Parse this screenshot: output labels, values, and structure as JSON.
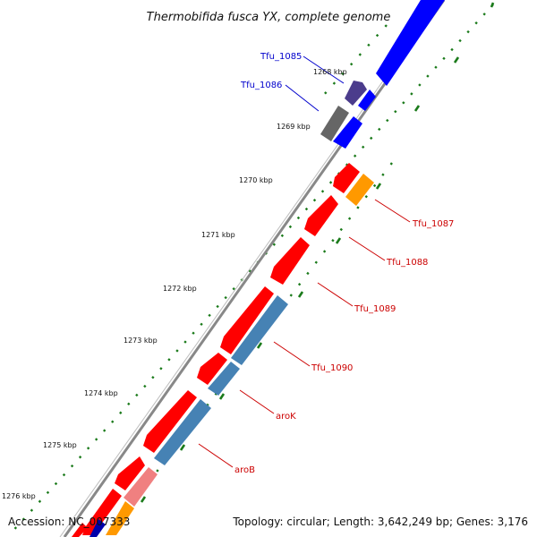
{
  "title": "Thermobifida fusca YX, complete genome",
  "accession": "Accession: NC_007333",
  "summary": "Topology: circular; Length: 3,642,249 bp; Genes: 3,176",
  "ticks": [
    "1268 kbp",
    "1269 kbp",
    "1270 kbp",
    "1271 kbp",
    "1272 kbp",
    "1273 kbp",
    "1274 kbp",
    "1275 kbp",
    "1276 kbp"
  ],
  "genes": [
    {
      "label": "Tfu_1085",
      "color": "#0000cc"
    },
    {
      "label": "Tfu_1086",
      "color": "#0000cc"
    },
    {
      "label": "Tfu_1087",
      "color": "#cc0000"
    },
    {
      "label": "Tfu_1088",
      "color": "#cc0000"
    },
    {
      "label": "Tfu_1089",
      "color": "#cc0000"
    },
    {
      "label": "Tfu_1090",
      "color": "#cc0000"
    },
    {
      "label": "aroK",
      "color": "#cc0000"
    },
    {
      "label": "aroB",
      "color": "#cc0000"
    }
  ],
  "colors": {
    "cds_red": "#ff0000",
    "cds_blue": "#0000ff",
    "steel_blue": "#4682b4",
    "orange": "#ff9900",
    "gray": "#666666",
    "purple": "#4b3c8c",
    "pink": "#f08080",
    "backbone": "#888888",
    "gc_green": "#1a7a1a"
  }
}
